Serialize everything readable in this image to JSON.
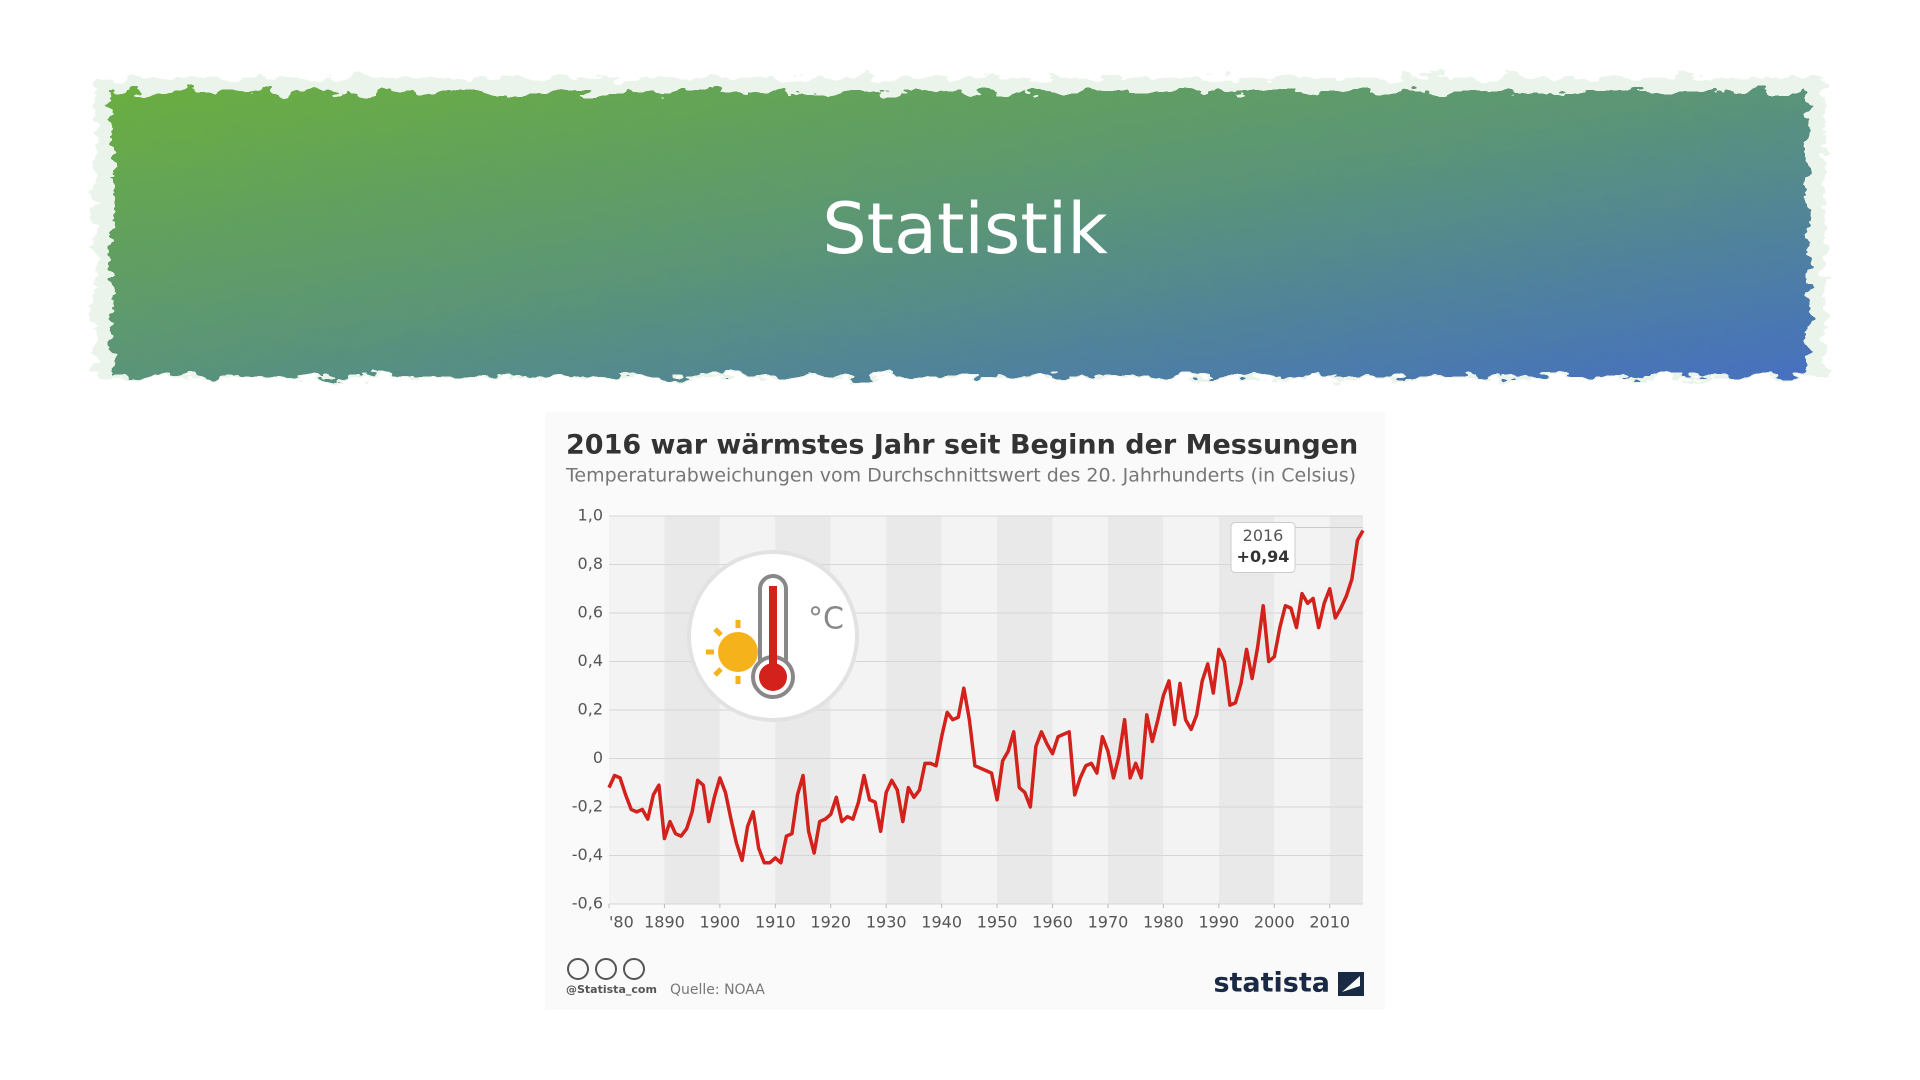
{
  "slide_title": "Statistik",
  "chart_data": {
    "type": "line",
    "title": "2016 war wärmstes Jahr seit Beginn der Messungen",
    "subtitle": "Temperaturabweichungen vom Durchschnittswert des 20. Jahrhunderts  (in Celsius)",
    "icon_label": "°C",
    "x": [
      1880,
      1881,
      1882,
      1883,
      1884,
      1885,
      1886,
      1887,
      1888,
      1889,
      1890,
      1891,
      1892,
      1893,
      1894,
      1895,
      1896,
      1897,
      1898,
      1899,
      1900,
      1901,
      1902,
      1903,
      1904,
      1905,
      1906,
      1907,
      1908,
      1909,
      1910,
      1911,
      1912,
      1913,
      1914,
      1915,
      1916,
      1917,
      1918,
      1919,
      1920,
      1921,
      1922,
      1923,
      1924,
      1925,
      1926,
      1927,
      1928,
      1929,
      1930,
      1931,
      1932,
      1933,
      1934,
      1935,
      1936,
      1937,
      1938,
      1939,
      1940,
      1941,
      1942,
      1943,
      1944,
      1945,
      1946,
      1947,
      1948,
      1949,
      1950,
      1951,
      1952,
      1953,
      1954,
      1955,
      1956,
      1957,
      1958,
      1959,
      1960,
      1961,
      1962,
      1963,
      1964,
      1965,
      1966,
      1967,
      1968,
      1969,
      1970,
      1971,
      1972,
      1973,
      1974,
      1975,
      1976,
      1977,
      1978,
      1979,
      1980,
      1981,
      1982,
      1983,
      1984,
      1985,
      1986,
      1987,
      1988,
      1989,
      1990,
      1991,
      1992,
      1993,
      1994,
      1995,
      1996,
      1997,
      1998,
      1999,
      2000,
      2001,
      2002,
      2003,
      2004,
      2005,
      2006,
      2007,
      2008,
      2009,
      2010,
      2011,
      2012,
      2013,
      2014,
      2015,
      2016
    ],
    "values": [
      -0.12,
      -0.07,
      -0.08,
      -0.15,
      -0.21,
      -0.22,
      -0.21,
      -0.25,
      -0.15,
      -0.11,
      -0.33,
      -0.26,
      -0.31,
      -0.32,
      -0.29,
      -0.22,
      -0.09,
      -0.11,
      -0.26,
      -0.16,
      -0.08,
      -0.14,
      -0.25,
      -0.35,
      -0.42,
      -0.28,
      -0.22,
      -0.37,
      -0.43,
      -0.43,
      -0.41,
      -0.43,
      -0.32,
      -0.31,
      -0.15,
      -0.07,
      -0.3,
      -0.39,
      -0.26,
      -0.25,
      -0.23,
      -0.16,
      -0.26,
      -0.24,
      -0.25,
      -0.18,
      -0.07,
      -0.17,
      -0.18,
      -0.3,
      -0.14,
      -0.09,
      -0.13,
      -0.26,
      -0.12,
      -0.16,
      -0.13,
      -0.02,
      -0.02,
      -0.03,
      0.09,
      0.19,
      0.16,
      0.17,
      0.29,
      0.16,
      -0.03,
      -0.04,
      -0.05,
      -0.06,
      -0.17,
      -0.01,
      0.03,
      0.11,
      -0.12,
      -0.14,
      -0.2,
      0.05,
      0.11,
      0.06,
      0.02,
      0.09,
      0.1,
      0.11,
      -0.15,
      -0.08,
      -0.03,
      -0.02,
      -0.06,
      0.09,
      0.03,
      -0.08,
      0.01,
      0.16,
      -0.08,
      -0.02,
      -0.08,
      0.18,
      0.07,
      0.16,
      0.26,
      0.32,
      0.14,
      0.31,
      0.16,
      0.12,
      0.18,
      0.32,
      0.39,
      0.27,
      0.45,
      0.4,
      0.22,
      0.23,
      0.31,
      0.45,
      0.33,
      0.46,
      0.63,
      0.4,
      0.42,
      0.54,
      0.63,
      0.62,
      0.54,
      0.68,
      0.64,
      0.66,
      0.54,
      0.64,
      0.7,
      0.58,
      0.62,
      0.67,
      0.74,
      0.9,
      0.94
    ],
    "color": "#d3211b",
    "xlim": [
      1880,
      2016
    ],
    "xticks": [
      {
        "value": 1880,
        "label": "'80"
      },
      1890,
      1900,
      1910,
      1920,
      1930,
      1940,
      1950,
      1960,
      1970,
      1980,
      1990,
      2000,
      2010
    ],
    "ylim": [
      -0.6,
      1.0
    ],
    "yticks": [
      {
        "value": 1.0,
        "label": "1,0"
      },
      {
        "value": 0.8,
        "label": "0,8"
      },
      {
        "value": 0.6,
        "label": "0,6"
      },
      {
        "value": 0.4,
        "label": "0,4"
      },
      {
        "value": 0.2,
        "label": "0,2"
      },
      0,
      {
        "value": -0.2,
        "label": "-0,2"
      },
      {
        "value": -0.4,
        "label": "-0,4"
      },
      {
        "value": -0.6,
        "label": "-0,6"
      }
    ],
    "grid": true,
    "annotation": {
      "x_label": "2016",
      "value_label": "+0,94"
    },
    "credit": "@Statista_com",
    "source": "Quelle: NOAA",
    "brand": "statista"
  }
}
